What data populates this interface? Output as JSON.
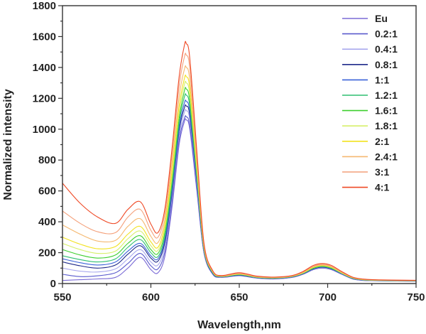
{
  "chart_data": {
    "type": "line",
    "title": "",
    "xlabel": "Wavelength,nm",
    "ylabel": "Normalized intensity",
    "xlim": [
      550,
      750
    ],
    "ylim": [
      0,
      1800
    ],
    "xticks": [
      "550",
      "600",
      "650",
      "700",
      "750"
    ],
    "yticks": [
      "0",
      "200",
      "400",
      "600",
      "800",
      "1000",
      "1200",
      "1400",
      "1600",
      "1800"
    ],
    "legend_position": "top-right",
    "x": [
      550,
      560,
      570,
      580,
      587,
      594,
      600,
      604,
      608,
      612,
      616,
      619,
      620,
      622,
      626,
      630,
      635,
      640,
      650,
      660,
      670,
      680,
      686,
      692,
      697,
      702,
      708,
      714,
      720,
      730,
      750
    ],
    "series": [
      {
        "name": "Eu",
        "color": "#7b6bd6",
        "values": [
          20,
          25,
          30,
          40,
          100,
          170,
          90,
          70,
          180,
          500,
          900,
          1050,
          1060,
          1000,
          600,
          200,
          60,
          40,
          50,
          35,
          30,
          40,
          60,
          90,
          100,
          90,
          60,
          30,
          20,
          18,
          15
        ]
      },
      {
        "name": "0.2:1",
        "color": "#5a5acd",
        "values": [
          60,
          45,
          50,
          70,
          130,
          195,
          115,
          95,
          210,
          530,
          930,
          1070,
          1080,
          1020,
          620,
          205,
          62,
          41,
          51,
          36,
          31,
          41,
          61,
          91,
          102,
          91,
          61,
          31,
          21,
          18,
          15
        ]
      },
      {
        "name": "0.4:1",
        "color": "#a9a9ee",
        "values": [
          100,
          80,
          75,
          95,
          160,
          220,
          140,
          120,
          240,
          560,
          960,
          1110,
          1120,
          1060,
          640,
          210,
          64,
          42,
          52,
          37,
          32,
          42,
          62,
          93,
          104,
          93,
          62,
          32,
          22,
          19,
          16
        ]
      },
      {
        "name": "0.8:1",
        "color": "#1f2a8a",
        "values": [
          140,
          115,
          100,
          120,
          190,
          245,
          165,
          145,
          270,
          590,
          990,
          1140,
          1150,
          1090,
          660,
          215,
          66,
          43,
          54,
          38,
          33,
          43,
          63,
          95,
          106,
          95,
          63,
          33,
          23,
          19,
          16
        ]
      },
      {
        "name": "1:1",
        "color": "#3a62d8",
        "values": [
          160,
          135,
          120,
          140,
          210,
          260,
          180,
          160,
          290,
          610,
          1010,
          1170,
          1180,
          1115,
          675,
          220,
          68,
          44,
          55,
          39,
          34,
          44,
          64,
          97,
          108,
          97,
          64,
          34,
          23,
          20,
          17
        ]
      },
      {
        "name": "1.2:1",
        "color": "#2fbf71",
        "values": [
          180,
          155,
          140,
          160,
          235,
          285,
          200,
          175,
          310,
          640,
          1040,
          1210,
          1220,
          1150,
          695,
          225,
          70,
          45,
          57,
          40,
          35,
          45,
          66,
          99,
          110,
          99,
          66,
          35,
          24,
          20,
          17
        ]
      },
      {
        "name": "1.6:1",
        "color": "#3ecf2e",
        "values": [
          220,
          185,
          165,
          185,
          260,
          310,
          220,
          195,
          335,
          670,
          1070,
          1250,
          1260,
          1185,
          715,
          230,
          72,
          46,
          58,
          41,
          36,
          46,
          67,
          101,
          112,
          101,
          67,
          36,
          25,
          21,
          18
        ]
      },
      {
        "name": "1.8:1",
        "color": "#d6ef6a",
        "values": [
          260,
          220,
          195,
          210,
          290,
          340,
          245,
          215,
          360,
          700,
          1110,
          1290,
          1300,
          1225,
          735,
          235,
          74,
          47,
          60,
          42,
          37,
          47,
          68,
          104,
          115,
          104,
          68,
          37,
          25,
          21,
          18
        ]
      },
      {
        "name": "2:1",
        "color": "#f2e21f",
        "values": [
          300,
          255,
          225,
          240,
          320,
          370,
          270,
          235,
          385,
          740,
          1150,
          1330,
          1340,
          1265,
          760,
          240,
          76,
          48,
          61,
          43,
          38,
          48,
          70,
          106,
          117,
          106,
          70,
          38,
          26,
          22,
          19
        ]
      },
      {
        "name": "2.4:1",
        "color": "#f5b870",
        "values": [
          380,
          320,
          275,
          280,
          370,
          420,
          305,
          265,
          420,
          790,
          1210,
          1390,
          1400,
          1320,
          790,
          245,
          78,
          49,
          63,
          44,
          39,
          49,
          72,
          109,
          120,
          109,
          72,
          39,
          27,
          22,
          19
        ]
      },
      {
        "name": "3:1",
        "color": "#f4a07a",
        "values": [
          470,
          390,
          335,
          330,
          430,
          480,
          345,
          300,
          460,
          840,
          1280,
          1470,
          1480,
          1395,
          830,
          255,
          80,
          50,
          66,
          46,
          40,
          50,
          74,
          112,
          124,
          112,
          74,
          40,
          28,
          23,
          20
        ]
      },
      {
        "name": "4:1",
        "color": "#ef4a26",
        "values": [
          650,
          520,
          430,
          390,
          480,
          530,
          385,
          330,
          490,
          880,
          1340,
          1545,
          1555,
          1460,
          860,
          265,
          84,
          52,
          70,
          48,
          42,
          52,
          78,
          118,
          130,
          118,
          78,
          42,
          29,
          24,
          21
        ]
      }
    ]
  }
}
